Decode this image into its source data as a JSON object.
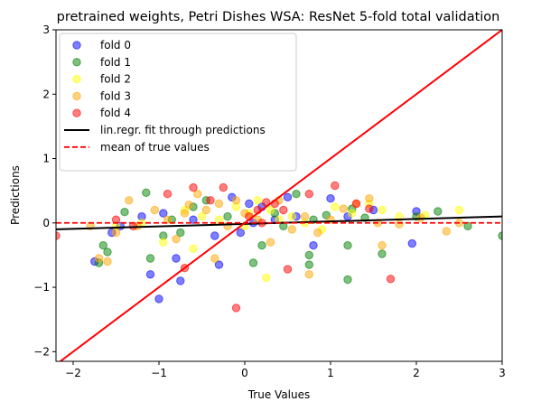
{
  "chart_data": {
    "type": "scatter",
    "title": "pretrained weights, Petri Dishes WSA: ResNet 5-fold total validation",
    "xlabel": "True Values",
    "ylabel": "Predictions",
    "xlim": [
      -2.2,
      3.0
    ],
    "ylim": [
      -2.15,
      3.0
    ],
    "xticks": [
      -2,
      -1,
      0,
      1,
      2,
      3
    ],
    "yticks": [
      -2,
      -1,
      0,
      1,
      2,
      3
    ],
    "grid": false,
    "legend_position": "top-left",
    "identity_line": {
      "label": "",
      "color": "#ff0000"
    },
    "fit_line": {
      "label": "lin.regr. fit through predictions",
      "color": "#000000",
      "x": [
        -2.2,
        3.0
      ],
      "y": [
        -0.1,
        0.1
      ]
    },
    "mean_line": {
      "label": "mean of true values",
      "color": "#ff0000",
      "y": 0.0
    },
    "series": [
      {
        "name": "fold 0",
        "color": "#0000ff",
        "points": [
          [
            -1.75,
            -0.6
          ],
          [
            -1.55,
            -0.15
          ],
          [
            -1.45,
            -0.05
          ],
          [
            -1.2,
            0.1
          ],
          [
            -1.1,
            -0.8
          ],
          [
            -1.0,
            -1.18
          ],
          [
            -0.95,
            0.15
          ],
          [
            -0.8,
            -0.55
          ],
          [
            -0.75,
            -0.9
          ],
          [
            -0.6,
            0.05
          ],
          [
            -0.35,
            -0.2
          ],
          [
            -0.3,
            -0.65
          ],
          [
            -0.15,
            0.4
          ],
          [
            -0.05,
            -0.15
          ],
          [
            0.05,
            0.3
          ],
          [
            0.1,
            0.0
          ],
          [
            0.2,
            0.25
          ],
          [
            0.35,
            0.05
          ],
          [
            0.5,
            0.4
          ],
          [
            0.6,
            0.1
          ],
          [
            0.8,
            -0.35
          ],
          [
            1.0,
            0.38
          ],
          [
            1.2,
            0.1
          ],
          [
            1.5,
            0.2
          ],
          [
            1.95,
            -0.32
          ],
          [
            2.0,
            0.18
          ]
        ]
      },
      {
        "name": "fold 1",
        "color": "#008000",
        "points": [
          [
            -1.7,
            -0.62
          ],
          [
            -1.65,
            -0.35
          ],
          [
            -1.6,
            -0.45
          ],
          [
            -1.4,
            0.17
          ],
          [
            -1.15,
            0.47
          ],
          [
            -1.1,
            -0.55
          ],
          [
            -0.95,
            -0.2
          ],
          [
            -0.85,
            0.05
          ],
          [
            -0.75,
            -0.15
          ],
          [
            -0.6,
            0.25
          ],
          [
            -0.45,
            0.35
          ],
          [
            -0.2,
            0.1
          ],
          [
            0.1,
            -0.62
          ],
          [
            0.2,
            -0.35
          ],
          [
            0.35,
            0.15
          ],
          [
            0.45,
            -0.05
          ],
          [
            0.6,
            0.45
          ],
          [
            0.75,
            -0.65
          ],
          [
            0.75,
            -0.5
          ],
          [
            0.8,
            0.05
          ],
          [
            0.95,
            0.12
          ],
          [
            1.2,
            -0.88
          ],
          [
            1.2,
            -0.35
          ],
          [
            1.25,
            0.22
          ],
          [
            1.4,
            0.08
          ],
          [
            1.6,
            -0.48
          ],
          [
            2.0,
            0.1
          ],
          [
            2.25,
            0.18
          ],
          [
            2.6,
            -0.05
          ],
          [
            3.0,
            -0.2
          ]
        ]
      },
      {
        "name": "fold 2",
        "color": "#ffff00",
        "points": [
          [
            -1.5,
            -0.05
          ],
          [
            -1.2,
            0.0
          ],
          [
            -0.95,
            -0.3
          ],
          [
            -0.7,
            0.2
          ],
          [
            -0.6,
            -0.4
          ],
          [
            -0.5,
            0.1
          ],
          [
            -0.3,
            0.05
          ],
          [
            -0.1,
            0.25
          ],
          [
            0.0,
            -0.05
          ],
          [
            0.05,
            0.15
          ],
          [
            0.15,
            0.35
          ],
          [
            0.25,
            -0.85
          ],
          [
            0.3,
            0.2
          ],
          [
            0.4,
            0.05
          ],
          [
            0.55,
            0.1
          ],
          [
            0.7,
            0.0
          ],
          [
            0.9,
            -0.1
          ],
          [
            1.05,
            0.25
          ],
          [
            1.25,
            0.15
          ],
          [
            1.45,
            0.3
          ],
          [
            1.6,
            0.2
          ],
          [
            1.8,
            0.1
          ],
          [
            2.1,
            0.12
          ],
          [
            2.5,
            0.2
          ]
        ]
      },
      {
        "name": "fold 3",
        "color": "#ffa500",
        "points": [
          [
            -1.8,
            -0.05
          ],
          [
            -1.7,
            -0.55
          ],
          [
            -1.6,
            -0.6
          ],
          [
            -1.5,
            -0.15
          ],
          [
            -1.35,
            0.35
          ],
          [
            -1.25,
            -0.05
          ],
          [
            -1.05,
            0.2
          ],
          [
            -0.9,
            0.05
          ],
          [
            -0.8,
            -0.25
          ],
          [
            -0.7,
            0.15
          ],
          [
            -0.65,
            0.28
          ],
          [
            -0.55,
            0.45
          ],
          [
            -0.45,
            0.2
          ],
          [
            -0.35,
            -0.55
          ],
          [
            -0.3,
            0.3
          ],
          [
            -0.2,
            -0.05
          ],
          [
            -0.1,
            0.35
          ],
          [
            0.0,
            0.15
          ],
          [
            0.15,
            0.05
          ],
          [
            0.3,
            -0.3
          ],
          [
            0.4,
            0.35
          ],
          [
            0.55,
            -0.1
          ],
          [
            0.7,
            0.1
          ],
          [
            0.75,
            -0.8
          ],
          [
            0.85,
            -0.15
          ],
          [
            1.0,
            0.05
          ],
          [
            1.15,
            0.22
          ],
          [
            1.3,
            0.3
          ],
          [
            1.45,
            0.38
          ],
          [
            1.55,
            0.0
          ],
          [
            1.6,
            -0.35
          ],
          [
            1.8,
            -0.02
          ],
          [
            2.05,
            0.08
          ],
          [
            2.35,
            -0.13
          ],
          [
            2.5,
            0.0
          ]
        ]
      },
      {
        "name": "fold 4",
        "color": "#ff0000",
        "points": [
          [
            -2.2,
            -0.2
          ],
          [
            -1.5,
            0.05
          ],
          [
            -1.3,
            -0.05
          ],
          [
            -0.9,
            0.45
          ],
          [
            -0.7,
            -0.7
          ],
          [
            -0.6,
            0.55
          ],
          [
            -0.4,
            0.35
          ],
          [
            -0.25,
            0.55
          ],
          [
            -0.1,
            -1.32
          ],
          [
            0.05,
            0.1
          ],
          [
            0.15,
            0.2
          ],
          [
            0.2,
            0.0
          ],
          [
            0.25,
            0.32
          ],
          [
            0.35,
            0.3
          ],
          [
            0.45,
            0.2
          ],
          [
            0.5,
            -0.72
          ],
          [
            0.75,
            0.45
          ],
          [
            1.05,
            0.58
          ],
          [
            1.3,
            0.3
          ],
          [
            1.45,
            0.22
          ],
          [
            1.7,
            -0.87
          ]
        ]
      }
    ]
  }
}
